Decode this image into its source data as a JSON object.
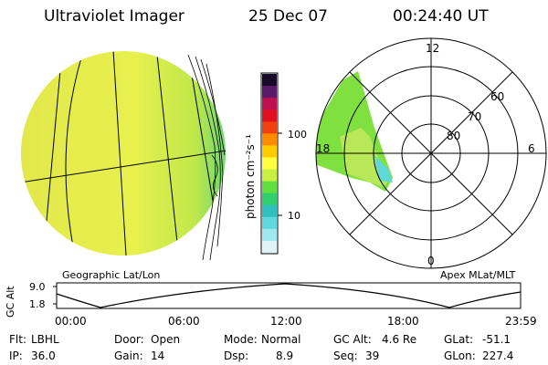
{
  "header": {
    "title": "Ultraviolet Imager",
    "date": "25 Dec 07",
    "time": "00:24:40 UT"
  },
  "colorbar": {
    "unit_label": "photon cm⁻²s⁻¹",
    "ticks": [
      "100",
      "10"
    ],
    "colors": [
      "#1a0a2a",
      "#5a1a6a",
      "#c01050",
      "#e01020",
      "#f04010",
      "#ff8c00",
      "#ffcc00",
      "#ffff40",
      "#c8f040",
      "#60e040",
      "#30d070",
      "#30c0c0",
      "#60d8e0",
      "#a0e8f0",
      "#e0f4f8"
    ]
  },
  "left_panel": {
    "caption": "Geographic Lat/Lon",
    "fill_color": "#e6f050"
  },
  "right_panel": {
    "caption": "Apex MLat/MLT",
    "mlt_labels": [
      "12",
      "18",
      "6",
      "0"
    ],
    "mlat_labels": [
      "60",
      "70",
      "80"
    ],
    "fill_color": "#80e040"
  },
  "timeline": {
    "ylabel": "GC Alt",
    "yticks": [
      "9.0",
      "1.8"
    ],
    "xticks": [
      "00:00",
      "06:00",
      "12:00",
      "18:00",
      "23:59"
    ]
  },
  "status": {
    "row1": [
      {
        "label": "Flt:",
        "value": "LBHL"
      },
      {
        "label": "Door:",
        "value": "Open"
      },
      {
        "label": "Mode:",
        "value": "Normal"
      },
      {
        "label": "GC Alt:",
        "value": "4.6 Re"
      },
      {
        "label": "GLat:",
        "value": "-51.1"
      }
    ],
    "row2": [
      {
        "label": "IP:",
        "value": "36.0"
      },
      {
        "label": "Gain:",
        "value": "14"
      },
      {
        "label": "Dsp:",
        "value": "8.9"
      },
      {
        "label": "Seq:",
        "value": "39"
      },
      {
        "label": "GLon:",
        "value": "227.4"
      }
    ]
  }
}
